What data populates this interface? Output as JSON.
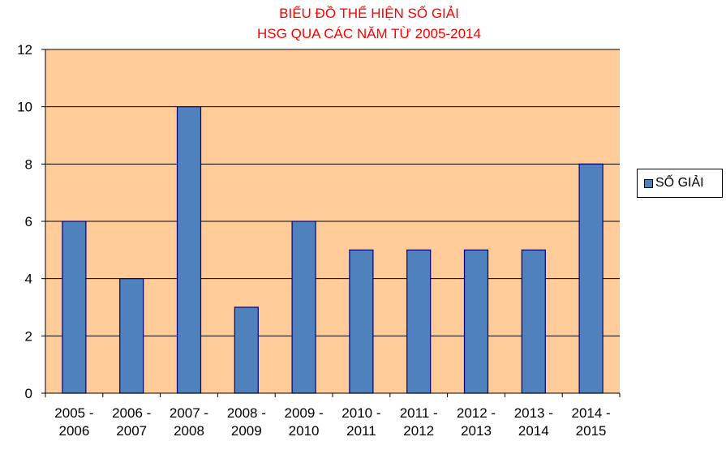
{
  "chart_data": {
    "type": "bar",
    "title": [
      "BIỂU ĐỒ THỂ HIỆN SỐ GIẢI",
      "HSG QUA CÁC NĂM TỪ 2005-2014"
    ],
    "categories": [
      [
        "2005 -",
        "2006"
      ],
      [
        "2006 -",
        "2007"
      ],
      [
        "2007 -",
        "2008"
      ],
      [
        "2008 -",
        "2009"
      ],
      [
        "2009 -",
        "2010"
      ],
      [
        "2010 -",
        "2011"
      ],
      [
        "2011 -",
        "2012"
      ],
      [
        "2012 -",
        "2013"
      ],
      [
        "2013 -",
        "2014"
      ],
      [
        "2014 -",
        "2015"
      ]
    ],
    "series": [
      {
        "name": "SỐ GIẢI",
        "values": [
          6,
          4,
          10,
          3,
          6,
          5,
          5,
          5,
          5,
          8
        ],
        "color": "#4f81bd"
      }
    ],
    "ylim": [
      0,
      12
    ],
    "yticks": [
      "0",
      "2",
      "4",
      "6",
      "8",
      "10",
      "12"
    ],
    "grid": true,
    "legend": "right",
    "plot_background": "#ffcc99",
    "bar_outline": "#000080"
  }
}
